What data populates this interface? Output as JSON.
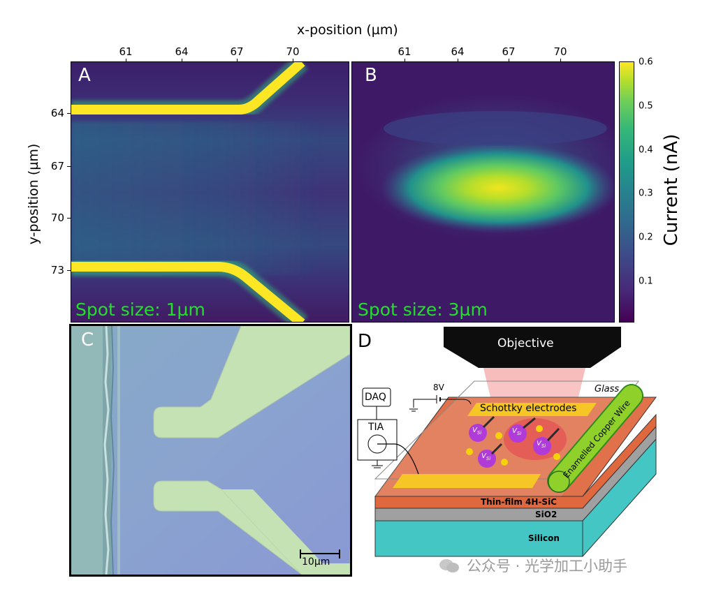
{
  "axes": {
    "xlabel": "x-position (µm)",
    "ylabel": "y-position (µm)",
    "x_ticks_a": [
      "61",
      "64",
      "67",
      "70"
    ],
    "x_ticks_b": [
      "61",
      "64",
      "67",
      "70"
    ],
    "y_ticks": [
      "64",
      "67",
      "70",
      "73"
    ]
  },
  "colorbar": {
    "label": "Current (nA)",
    "ticks": [
      "0.6",
      "0.5",
      "0.4",
      "0.3",
      "0.2",
      "0.1"
    ],
    "range": [
      0.02,
      0.6
    ]
  },
  "panels": {
    "a": {
      "letter": "A",
      "spot": "Spot size: 1µm"
    },
    "b": {
      "letter": "B",
      "spot": "Spot size: 3µm"
    },
    "c": {
      "letter": "C",
      "scalebar": "10µm"
    },
    "d": {
      "letter": "D",
      "objective": "Objective",
      "glass": "Glass",
      "voltage": "8V",
      "daq": "DAQ",
      "tia": "TIA",
      "electrodes": "Schottky electrodes",
      "wire": "Enamelled Copper Wire",
      "layers": [
        "Thin-film 4H-SiC",
        "SiO2",
        "Silicon"
      ],
      "vsi": "V",
      "vsi_sub": "Si",
      "minus": "−"
    }
  },
  "watermark": "公众号 · 光学加工小助手",
  "colors": {
    "viridis_dark": "#440154",
    "viridis_mid": "#21918c",
    "viridis_yellow": "#fde725",
    "spot_text": "#22e02a",
    "sic": "#e0683f",
    "sio2": "#a0a0a0",
    "silicon": "#43c6c4"
  }
}
